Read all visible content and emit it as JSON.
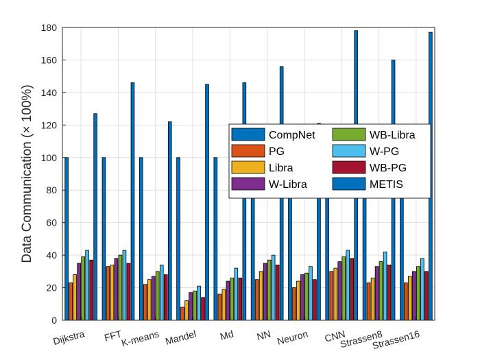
{
  "chart_data": {
    "type": "bar",
    "title": "",
    "xlabel": "",
    "ylabel": "Data Communication (× 100%)",
    "ylim": [
      0,
      180
    ],
    "yticks": [
      0,
      20,
      40,
      60,
      80,
      100,
      120,
      140,
      160,
      180
    ],
    "grid": true,
    "legend": {
      "placement": "center-right",
      "columns": 2
    },
    "categories": [
      "Dijkstra",
      "FFT",
      "K-means",
      "Mandel",
      "Md",
      "NN",
      "Neuron",
      "CNN",
      "Strassen8",
      "Strassen16"
    ],
    "series": [
      {
        "name": "CompNet",
        "color": "#0072BD",
        "values": [
          100,
          100,
          100,
          100,
          100,
          100,
          100,
          100,
          100,
          100
        ]
      },
      {
        "name": "PG",
        "color": "#D95319",
        "values": [
          23,
          33,
          22,
          8,
          16,
          25,
          20,
          30,
          23,
          23
        ]
      },
      {
        "name": "Libra",
        "color": "#EDB120",
        "values": [
          28,
          34,
          25,
          12,
          19,
          30,
          24,
          32,
          26,
          27
        ]
      },
      {
        "name": "W-Libra",
        "color": "#7E2F8E",
        "values": [
          35,
          38,
          27,
          17,
          24,
          35,
          28,
          36,
          33,
          30
        ]
      },
      {
        "name": "WB-Libra",
        "color": "#77AC30",
        "values": [
          39,
          40,
          30,
          18,
          26,
          37,
          29,
          39,
          36,
          33
        ]
      },
      {
        "name": "W-PG",
        "color": "#4DBEEE",
        "values": [
          43,
          43,
          34,
          21,
          32,
          40,
          33,
          43,
          42,
          38
        ]
      },
      {
        "name": "WB-PG",
        "color": "#A2142F",
        "values": [
          37,
          35,
          28,
          14,
          26,
          34,
          25,
          38,
          34,
          30
        ]
      },
      {
        "name": "METIS",
        "color": "#0072BD",
        "values": [
          127,
          146,
          122,
          145,
          146,
          156,
          121,
          178,
          160,
          177
        ]
      }
    ]
  }
}
